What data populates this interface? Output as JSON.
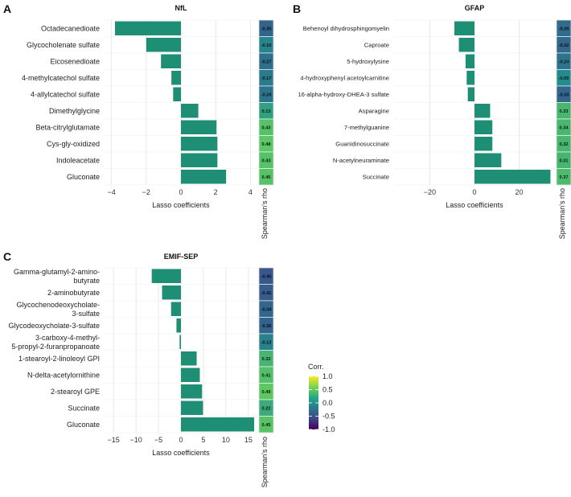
{
  "bar_color": "#1e8f74",
  "colorbar": {
    "title": "Corr.",
    "ticks": [
      "1.0",
      "0.5",
      "0.0",
      "-0.5",
      "-1.0"
    ],
    "range": [
      -1,
      1
    ],
    "stops": [
      "#fde725",
      "#7ad151",
      "#22a884",
      "#2a788e",
      "#414487",
      "#440154"
    ]
  },
  "chart_data": [
    {
      "type": "bar",
      "panel_label": "A",
      "title": "NfL",
      "xlabel": "Lasso coefficients",
      "rho_label": "Spearman's rho",
      "xlim": [
        -4.4,
        4.4
      ],
      "xticks": [
        -4,
        -2,
        0,
        2,
        4
      ],
      "xtick_labels": [
        "−4",
        "−2",
        "0",
        "2",
        "4"
      ],
      "categories": [
        "Octadecanedioate",
        "Glycocholenate sulfate",
        "Eicosenedioate",
        "4-methylcatechol sulfate",
        "4-allylcatechol sulfate",
        "Dimethylglycine",
        "Beta-citrylglutamate",
        "Cys-gly-oxidized",
        "Indoleacetate",
        "Gluconate"
      ],
      "values": [
        -3.8,
        -2.0,
        -1.15,
        -0.55,
        -0.45,
        1.0,
        2.05,
        2.1,
        2.1,
        2.6
      ],
      "rho": [
        -0.35,
        -0.1,
        -0.27,
        -0.17,
        -0.24,
        0.13,
        0.43,
        0.48,
        0.43,
        0.45
      ],
      "rho_labels": [
        "-0.35",
        "-0.10",
        "-0.27",
        "-0.17",
        "-0.24",
        "0.13",
        "0.43",
        "0.48",
        "0.43",
        "0.45"
      ]
    },
    {
      "type": "bar",
      "panel_label": "B",
      "title": "GFAP",
      "xlabel": "Lasso coefficients",
      "rho_label": "Spearman's rho",
      "xlim": [
        -36,
        36
      ],
      "xticks": [
        -20,
        0,
        20
      ],
      "xtick_labels": [
        "−20",
        "0",
        "20"
      ],
      "categories": [
        "Behenoyl dihydrosphingomyelin",
        "Caproate",
        "5-hydroxylysine",
        "4-hydroxyphenyl acetoylcarnitine",
        "16-alpha-hydroxy-DHEA-3 sulfate",
        "Asparagine",
        "7-methylguanine",
        "Guanidinosuccinate",
        "N-acetylneuraminate",
        "Succinate"
      ],
      "values": [
        -9,
        -7,
        -4,
        -3.5,
        -3,
        7,
        8,
        8,
        12,
        34
      ],
      "rho": [
        -0.29,
        -0.32,
        -0.24,
        -0.05,
        -0.33,
        0.33,
        0.34,
        0.32,
        0.31,
        0.37
      ],
      "rho_labels": [
        "-0.29",
        "-0.32",
        "-0.24",
        "-0.05",
        "-0.33",
        "0.33",
        "0.34",
        "0.32",
        "0.31",
        "0.37"
      ]
    },
    {
      "type": "bar",
      "panel_label": "C",
      "title": "EMIF-SEP",
      "xlabel": "Lasso coefficients",
      "rho_label": "Spearman's rho",
      "xlim": [
        -17,
        17
      ],
      "xticks": [
        -15,
        -10,
        -5,
        0,
        5,
        10,
        15
      ],
      "xtick_labels": [
        "−15",
        "−10",
        "−5",
        "0",
        "5",
        "10",
        "15"
      ],
      "categories": [
        [
          "Gamma-glutamyl-2-amino-",
          "butyrate"
        ],
        [
          "2-aminobutyrate"
        ],
        [
          "Glycochenodeoxycholate-",
          "3-sulfate"
        ],
        [
          "Glycodeoxycholate-3-sulfate"
        ],
        [
          "3-carboxy-4-methyl-",
          "5-propyl-2-furanpropanoate"
        ],
        [
          "1-stearoyl-2-linoleoyl GPI"
        ],
        [
          "N-delta-acetylornithine"
        ],
        [
          "2-stearoyl GPE"
        ],
        [
          "Succinate"
        ],
        [
          "Gluconate"
        ]
      ],
      "values": [
        -6.5,
        -4.2,
        -2.2,
        -1.0,
        -0.3,
        3.5,
        4.2,
        4.7,
        4.9,
        16.3
      ],
      "rho": [
        -0.45,
        -0.41,
        -0.34,
        -0.36,
        -0.13,
        0.32,
        0.41,
        0.49,
        0.22,
        0.45
      ],
      "rho_labels": [
        "-0.45",
        "-0.41",
        "-0.34",
        "-0.36",
        "-0.13",
        "0.32",
        "0.41",
        "0.49",
        "0.22",
        "0.45"
      ]
    }
  ]
}
